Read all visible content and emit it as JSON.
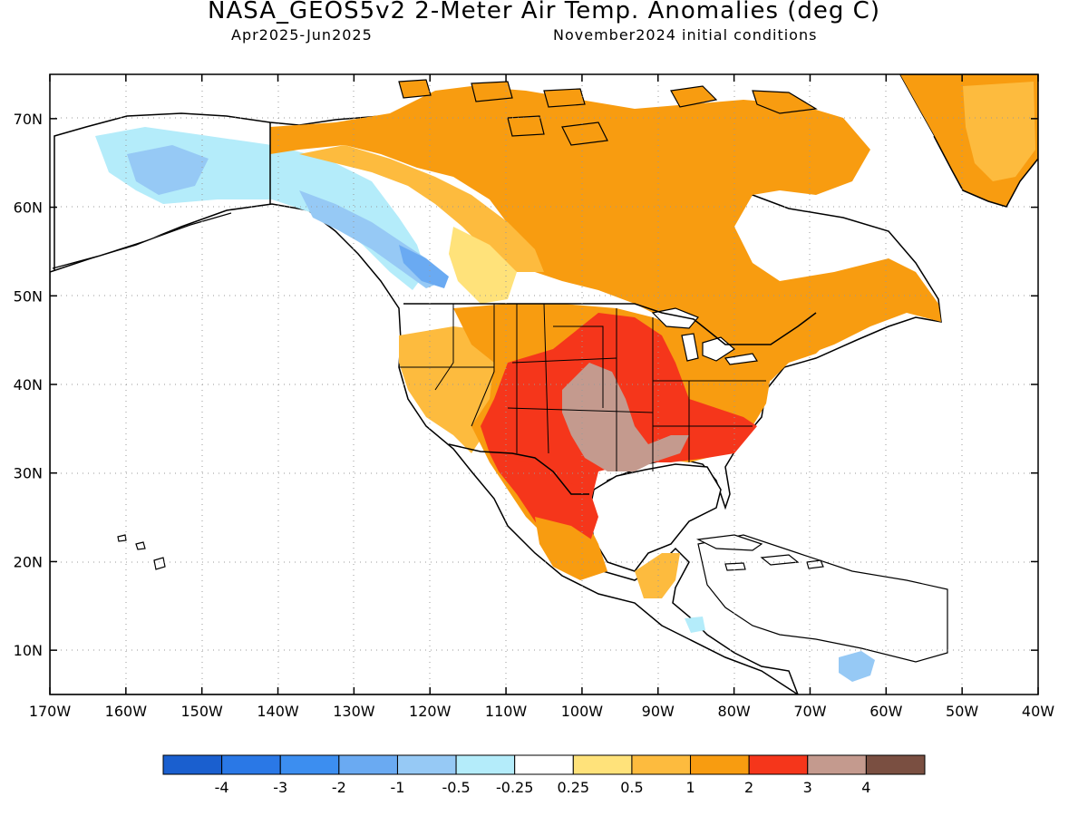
{
  "header": {
    "title": "NASA_GEOS5v2 2-Meter Air Temp. Anomalies (deg C)",
    "period": "Apr2025-Jun2025",
    "init": "November2024 initial conditions"
  },
  "map": {
    "lon_labels": [
      "170W",
      "160W",
      "150W",
      "140W",
      "130W",
      "120W",
      "110W",
      "100W",
      "90W",
      "80W",
      "70W",
      "60W",
      "50W",
      "40W"
    ],
    "lat_labels": [
      "70N",
      "60N",
      "50N",
      "40N",
      "30N",
      "20N",
      "10N"
    ],
    "lon_range": [
      -170,
      -40
    ],
    "lat_range": [
      5,
      75
    ],
    "gridlines": "dotted"
  },
  "colorbar": {
    "labels": [
      "-4",
      "-3",
      "-2",
      "-1",
      "-0.5",
      "-0.25",
      "0.25",
      "0.5",
      "1",
      "2",
      "3",
      "4"
    ],
    "colors": [
      "#1a5fcf",
      "#2a78e6",
      "#3c8ef0",
      "#6aaaf2",
      "#96c9f5",
      "#b4ecfa",
      "#ffffff",
      "#ffe27a",
      "#fdbb3e",
      "#f89c10",
      "#f5361b",
      "#c49a8e",
      "#7a4f41"
    ]
  }
}
